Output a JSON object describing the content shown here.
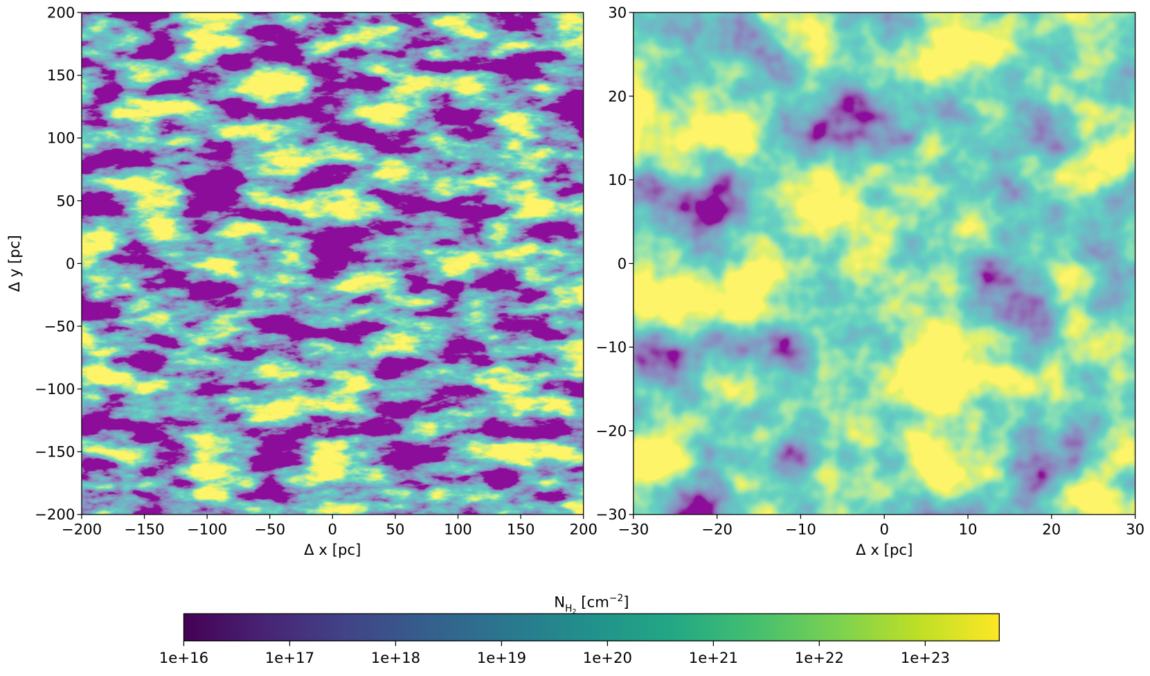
{
  "chart_data": [
    {
      "type": "image",
      "xlabel": "Δ x [pc]",
      "ylabel": "Δ y [pc]",
      "xlim": [
        -200,
        200
      ],
      "ylim": [
        -200,
        200
      ],
      "xticks": [
        {
          "value": -200,
          "label": "−200"
        },
        {
          "value": -150,
          "label": "−150"
        },
        {
          "value": -100,
          "label": "−100"
        },
        {
          "value": -50,
          "label": "−50"
        },
        0,
        50,
        100,
        150,
        200
      ],
      "yticks": [
        {
          "value": -200,
          "label": "−200"
        },
        {
          "value": -150,
          "label": "−150"
        },
        {
          "value": -100,
          "label": "−100"
        },
        {
          "value": -50,
          "label": "−50"
        },
        0,
        50,
        100,
        150,
        200
      ],
      "cmap": "viridis"
    },
    {
      "type": "image",
      "xlabel": "Δ x [pc]",
      "xlim": [
        -30,
        30
      ],
      "ylim": [
        -30,
        30
      ],
      "xticks": [
        {
          "value": -30,
          "label": "−30"
        },
        {
          "value": -20,
          "label": "−20"
        },
        {
          "value": -10,
          "label": "−10"
        },
        0,
        10,
        20,
        30
      ],
      "yticks": [
        {
          "value": -30,
          "label": "−30"
        },
        {
          "value": -20,
          "label": "−20"
        },
        {
          "value": -10,
          "label": "−10"
        },
        0,
        10,
        20,
        30
      ],
      "cmap": "viridis"
    }
  ],
  "colorbar": {
    "label": {
      "base": "N",
      "sub": "H",
      "subsub": "2",
      "unit": " [cm",
      "sup": "−2",
      "close": "]"
    },
    "log": true,
    "lim": [
      1e+16,
      5e+23
    ],
    "cmap": "viridis",
    "ticks": [
      {
        "value": 1e+16,
        "label": "1e+16"
      },
      {
        "value": 1e+17,
        "label": "1e+17"
      },
      {
        "value": 1e+18,
        "label": "1e+18"
      },
      {
        "value": 1e+19,
        "label": "1e+19"
      },
      {
        "value": 1e+20,
        "label": "1e+20"
      },
      {
        "value": 1e+21,
        "label": "1e+21"
      },
      {
        "value": 1e+22,
        "label": "1e+22"
      },
      {
        "value": 1e+23,
        "label": "1e+23"
      }
    ]
  }
}
